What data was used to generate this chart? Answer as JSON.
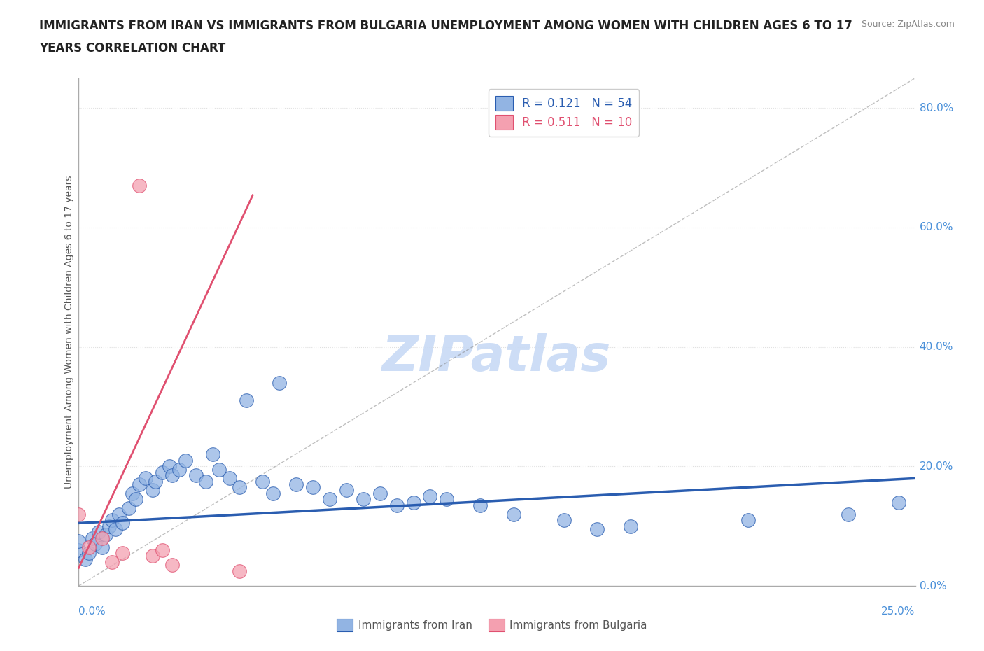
{
  "title_line1": "IMMIGRANTS FROM IRAN VS IMMIGRANTS FROM BULGARIA UNEMPLOYMENT AMONG WOMEN WITH CHILDREN AGES 6 TO 17",
  "title_line2": "YEARS CORRELATION CHART",
  "source_text": "Source: ZipAtlas.com",
  "xmin": 0.0,
  "xmax": 0.25,
  "ymin": 0.0,
  "ymax": 0.85,
  "iran_R": 0.121,
  "iran_N": 54,
  "bulgaria_R": 0.511,
  "bulgaria_N": 10,
  "iran_color": "#92b4e3",
  "iran_line_color": "#2a5db0",
  "bulgaria_color": "#f4a0b0",
  "bulgaria_line_color": "#e05070",
  "iran_x": [
    0.0,
    0.0,
    0.002,
    0.003,
    0.004,
    0.005,
    0.006,
    0.007,
    0.008,
    0.009,
    0.01,
    0.011,
    0.012,
    0.013,
    0.015,
    0.016,
    0.017,
    0.018,
    0.02,
    0.022,
    0.023,
    0.025,
    0.027,
    0.028,
    0.03,
    0.032,
    0.035,
    0.038,
    0.04,
    0.042,
    0.045,
    0.048,
    0.05,
    0.055,
    0.058,
    0.06,
    0.065,
    0.07,
    0.075,
    0.08,
    0.085,
    0.09,
    0.095,
    0.1,
    0.105,
    0.11,
    0.12,
    0.13,
    0.145,
    0.155,
    0.165,
    0.2,
    0.23,
    0.245
  ],
  "iran_y": [
    0.06,
    0.075,
    0.045,
    0.055,
    0.08,
    0.07,
    0.09,
    0.065,
    0.085,
    0.1,
    0.11,
    0.095,
    0.12,
    0.105,
    0.13,
    0.155,
    0.145,
    0.17,
    0.18,
    0.16,
    0.175,
    0.19,
    0.2,
    0.185,
    0.195,
    0.21,
    0.185,
    0.175,
    0.22,
    0.195,
    0.18,
    0.165,
    0.31,
    0.175,
    0.155,
    0.34,
    0.17,
    0.165,
    0.145,
    0.16,
    0.145,
    0.155,
    0.135,
    0.14,
    0.15,
    0.145,
    0.135,
    0.12,
    0.11,
    0.095,
    0.1,
    0.11,
    0.12,
    0.14
  ],
  "bulgaria_x": [
    0.0,
    0.003,
    0.007,
    0.01,
    0.013,
    0.018,
    0.022,
    0.025,
    0.028,
    0.048
  ],
  "bulgaria_y": [
    0.12,
    0.065,
    0.08,
    0.04,
    0.055,
    0.67,
    0.05,
    0.06,
    0.035,
    0.025
  ],
  "watermark": "ZIPatlas",
  "watermark_color": "#c8daf5",
  "grid_color": "#e0e0e0",
  "axis_label_color": "#4a90d9",
  "title_color": "#222222",
  "background_color": "#ffffff",
  "right_ytick_values": [
    0.0,
    0.2,
    0.4,
    0.6,
    0.8
  ],
  "right_ytick_labels": [
    "0.0%",
    "20.0%",
    "40.0%",
    "60.0%",
    "80.0%"
  ],
  "iran_trend_slope": 0.3,
  "iran_trend_intercept": 0.105,
  "bulg_trend_slope": 12.0,
  "bulg_trend_intercept": 0.03
}
